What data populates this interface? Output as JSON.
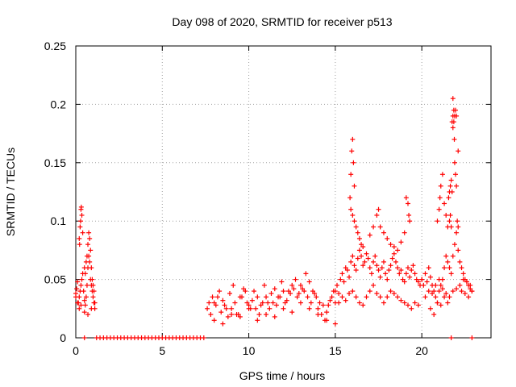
{
  "chart_data": {
    "type": "scatter",
    "title": "Day 098 of 2020, SRMTID for receiver p513",
    "xlabel": "GPS time / hours",
    "ylabel": "SRMTID / TECUs",
    "xlim": [
      0,
      24
    ],
    "ylim": [
      0,
      0.25
    ],
    "xticks": [
      0,
      5,
      10,
      15,
      20
    ],
    "xtick_labels": [
      "0",
      "5",
      "10",
      "15",
      "20"
    ],
    "yticks": [
      0,
      0.05,
      0.1,
      0.15,
      0.2,
      0.25
    ],
    "ytick_labels": [
      "0",
      "0.05",
      "0.1",
      "0.15",
      "0.2",
      "0.25"
    ],
    "grid": true,
    "marker": "+",
    "series": [
      {
        "name": "SRMTID",
        "color": "#ff0000",
        "x": [
          0.0,
          0.05,
          0.1,
          0.15,
          0.2,
          0.25,
          0.3,
          0.35,
          0.4,
          0.45,
          0.5,
          0.55,
          0.6,
          0.65,
          0.7,
          0.75,
          0.8,
          0.85,
          0.9,
          0.95,
          1.0,
          1.05,
          1.1,
          0.2,
          0.25,
          0.28,
          0.3,
          0.32,
          0.35,
          0.4,
          0.22,
          0.5,
          0.55,
          0.6,
          0.65,
          0.7,
          0.75,
          0.8,
          0.85,
          0.9,
          0.95,
          1.0,
          1.05,
          0.0,
          0.1,
          0.2,
          0.3,
          0.5,
          0.7,
          0.9,
          1.1,
          0.5,
          1.2,
          1.4,
          1.6,
          1.8,
          2.0,
          2.2,
          2.4,
          2.6,
          2.8,
          3.0,
          3.2,
          3.4,
          3.6,
          3.8,
          4.0,
          4.2,
          4.4,
          4.6,
          4.8,
          5.0,
          5.2,
          5.4,
          5.6,
          5.8,
          6.0,
          6.2,
          6.4,
          6.6,
          6.8,
          7.0,
          7.2,
          7.4,
          21.7,
          22.9,
          7.6,
          7.8,
          8.0,
          8.2,
          8.4,
          8.6,
          8.8,
          9.0,
          9.2,
          9.4,
          9.6,
          9.8,
          10.0,
          10.2,
          10.4,
          10.6,
          10.8,
          11.0,
          11.2,
          11.4,
          11.6,
          11.8,
          12.0,
          12.2,
          12.4,
          12.6,
          12.8,
          13.0,
          13.2,
          13.4,
          13.6,
          13.8,
          14.0,
          14.2,
          14.4,
          14.6,
          14.8,
          15.0,
          7.7,
          7.9,
          8.1,
          8.3,
          8.5,
          8.7,
          8.9,
          9.1,
          9.3,
          9.5,
          9.7,
          9.9,
          10.1,
          10.3,
          10.5,
          10.7,
          10.9,
          11.1,
          11.3,
          11.5,
          11.7,
          11.9,
          12.1,
          12.3,
          12.5,
          12.7,
          12.9,
          13.1,
          13.3,
          13.5,
          13.7,
          13.9,
          14.1,
          14.3,
          14.5,
          14.7,
          14.9,
          8.0,
          8.5,
          9.0,
          9.5,
          10.0,
          10.5,
          11.0,
          11.5,
          12.0,
          12.5,
          13.0,
          13.5,
          14.0,
          14.5,
          15.0,
          15.0,
          15.1,
          15.2,
          15.3,
          15.4,
          15.5,
          15.6,
          15.7,
          15.8,
          15.9,
          16.0,
          16.1,
          16.2,
          16.3,
          16.4,
          16.5,
          16.6,
          16.7,
          16.8,
          16.9,
          17.0,
          17.1,
          17.2,
          17.3,
          17.4,
          17.5,
          17.6,
          17.7,
          17.8,
          17.9,
          18.0,
          18.1,
          18.2,
          18.3,
          18.4,
          18.5,
          18.6,
          18.7,
          18.8,
          18.9,
          19.0,
          19.1,
          19.2,
          19.3,
          19.4,
          19.5,
          19.6,
          19.7,
          19.8,
          19.9,
          20.0,
          15.9,
          15.95,
          16.0,
          16.05,
          16.1,
          15.85,
          15.9,
          16.0,
          16.1,
          16.2,
          16.3,
          16.4,
          16.5,
          16.6,
          17.0,
          17.2,
          17.4,
          17.5,
          17.6,
          17.8,
          18.0,
          18.2,
          18.4,
          18.6,
          18.8,
          19.0,
          19.1,
          19.2,
          19.25,
          19.3,
          15.2,
          15.4,
          15.6,
          15.8,
          16.0,
          16.2,
          16.4,
          16.6,
          16.8,
          17.0,
          17.2,
          17.4,
          17.6,
          17.8,
          18.0,
          18.2,
          18.4,
          18.6,
          18.8,
          19.0,
          19.2,
          19.4,
          19.6,
          19.8,
          20.0,
          20.1,
          20.2,
          20.3,
          20.4,
          20.5,
          20.6,
          20.7,
          20.8,
          20.9,
          21.0,
          21.1,
          21.2,
          21.3,
          21.4,
          21.5,
          21.6,
          21.7,
          21.8,
          21.9,
          22.0,
          22.1,
          22.2,
          22.3,
          22.4,
          22.5,
          22.6,
          22.7,
          22.8,
          22.9,
          20.9,
          21.0,
          21.05,
          21.1,
          21.2,
          21.3,
          21.4,
          21.5,
          21.55,
          21.6,
          21.65,
          21.7,
          21.75,
          21.8,
          21.85,
          21.9,
          21.95,
          22.0,
          22.1,
          21.8,
          21.85,
          21.88,
          21.9,
          21.95,
          22.0,
          22.05,
          22.1,
          21.75,
          21.8,
          21.6,
          21.65,
          21.7,
          20.2,
          20.4,
          20.6,
          20.8,
          21.0,
          21.2,
          21.4,
          21.6,
          21.8,
          22.0,
          22.2,
          22.4,
          22.6,
          22.8,
          20.5,
          20.7,
          20.9,
          21.1,
          21.3,
          21.5,
          22.3,
          22.5,
          22.7,
          22.9
        ],
        "y": [
          0.035,
          0.042,
          0.048,
          0.03,
          0.025,
          0.04,
          0.045,
          0.05,
          0.055,
          0.04,
          0.032,
          0.028,
          0.035,
          0.045,
          0.06,
          0.07,
          0.065,
          0.05,
          0.045,
          0.04,
          0.035,
          0.03,
          0.025,
          0.085,
          0.095,
          0.1,
          0.11,
          0.112,
          0.105,
          0.09,
          0.08,
          0.06,
          0.055,
          0.065,
          0.07,
          0.08,
          0.09,
          0.085,
          0.075,
          0.06,
          0.05,
          0.045,
          0.04,
          0.038,
          0.03,
          0.035,
          0.028,
          0.022,
          0.02,
          0.025,
          0.03,
          0.0,
          0.0,
          0.0,
          0.0,
          0.0,
          0.0,
          0.0,
          0.0,
          0.0,
          0.0,
          0.0,
          0.0,
          0.0,
          0.0,
          0.0,
          0.0,
          0.0,
          0.0,
          0.0,
          0.0,
          0.0,
          0.0,
          0.0,
          0.0,
          0.0,
          0.0,
          0.0,
          0.0,
          0.0,
          0.0,
          0.0,
          0.0,
          0.0,
          0.0,
          0.0,
          0.025,
          0.02,
          0.03,
          0.035,
          0.022,
          0.028,
          0.018,
          0.025,
          0.03,
          0.02,
          0.035,
          0.04,
          0.028,
          0.032,
          0.025,
          0.02,
          0.03,
          0.035,
          0.025,
          0.03,
          0.028,
          0.035,
          0.04,
          0.032,
          0.038,
          0.042,
          0.035,
          0.045,
          0.04,
          0.035,
          0.03,
          0.038,
          0.025,
          0.02,
          0.015,
          0.028,
          0.035,
          0.03,
          0.03,
          0.035,
          0.028,
          0.04,
          0.032,
          0.025,
          0.038,
          0.045,
          0.02,
          0.035,
          0.042,
          0.03,
          0.025,
          0.04,
          0.035,
          0.028,
          0.045,
          0.03,
          0.038,
          0.042,
          0.035,
          0.048,
          0.03,
          0.04,
          0.045,
          0.05,
          0.038,
          0.042,
          0.055,
          0.048,
          0.04,
          0.035,
          0.03,
          0.028,
          0.022,
          0.032,
          0.04,
          0.015,
          0.012,
          0.02,
          0.018,
          0.025,
          0.015,
          0.02,
          0.018,
          0.025,
          0.022,
          0.03,
          0.025,
          0.02,
          0.015,
          0.012,
          0.04,
          0.045,
          0.038,
          0.05,
          0.055,
          0.048,
          0.06,
          0.058,
          0.052,
          0.065,
          0.07,
          0.062,
          0.058,
          0.068,
          0.075,
          0.07,
          0.062,
          0.065,
          0.072,
          0.068,
          0.06,
          0.055,
          0.065,
          0.07,
          0.062,
          0.058,
          0.052,
          0.06,
          0.065,
          0.055,
          0.05,
          0.058,
          0.062,
          0.068,
          0.072,
          0.065,
          0.06,
          0.055,
          0.058,
          0.05,
          0.048,
          0.055,
          0.06,
          0.052,
          0.058,
          0.062,
          0.055,
          0.05,
          0.048,
          0.045,
          0.05,
          0.14,
          0.16,
          0.17,
          0.15,
          0.13,
          0.12,
          0.11,
          0.105,
          0.1,
          0.095,
          0.09,
          0.085,
          0.08,
          0.078,
          0.088,
          0.095,
          0.105,
          0.11,
          0.095,
          0.09,
          0.085,
          0.08,
          0.078,
          0.075,
          0.082,
          0.09,
          0.12,
          0.115,
          0.105,
          0.1,
          0.03,
          0.035,
          0.032,
          0.038,
          0.04,
          0.035,
          0.03,
          0.028,
          0.035,
          0.04,
          0.045,
          0.038,
          0.035,
          0.03,
          0.035,
          0.04,
          0.038,
          0.035,
          0.032,
          0.03,
          0.028,
          0.025,
          0.03,
          0.028,
          0.05,
          0.045,
          0.055,
          0.048,
          0.06,
          0.052,
          0.045,
          0.04,
          0.035,
          0.03,
          0.04,
          0.045,
          0.05,
          0.06,
          0.07,
          0.065,
          0.06,
          0.055,
          0.07,
          0.08,
          0.09,
          0.075,
          0.065,
          0.06,
          0.055,
          0.05,
          0.048,
          0.045,
          0.042,
          0.04,
          0.1,
          0.11,
          0.12,
          0.13,
          0.14,
          0.115,
          0.105,
          0.095,
          0.12,
          0.125,
          0.13,
          0.135,
          0.125,
          0.18,
          0.185,
          0.19,
          0.195,
          0.19,
          0.16,
          0.205,
          0.195,
          0.17,
          0.15,
          0.14,
          0.13,
          0.1,
          0.095,
          0.185,
          0.19,
          0.1,
          0.105,
          0.095,
          0.035,
          0.04,
          0.038,
          0.045,
          0.05,
          0.042,
          0.038,
          0.035,
          0.04,
          0.042,
          0.045,
          0.05,
          0.048,
          0.045,
          0.025,
          0.02,
          0.03,
          0.028,
          0.035,
          0.03,
          0.04,
          0.038,
          0.035,
          0.04
        ]
      }
    ]
  }
}
